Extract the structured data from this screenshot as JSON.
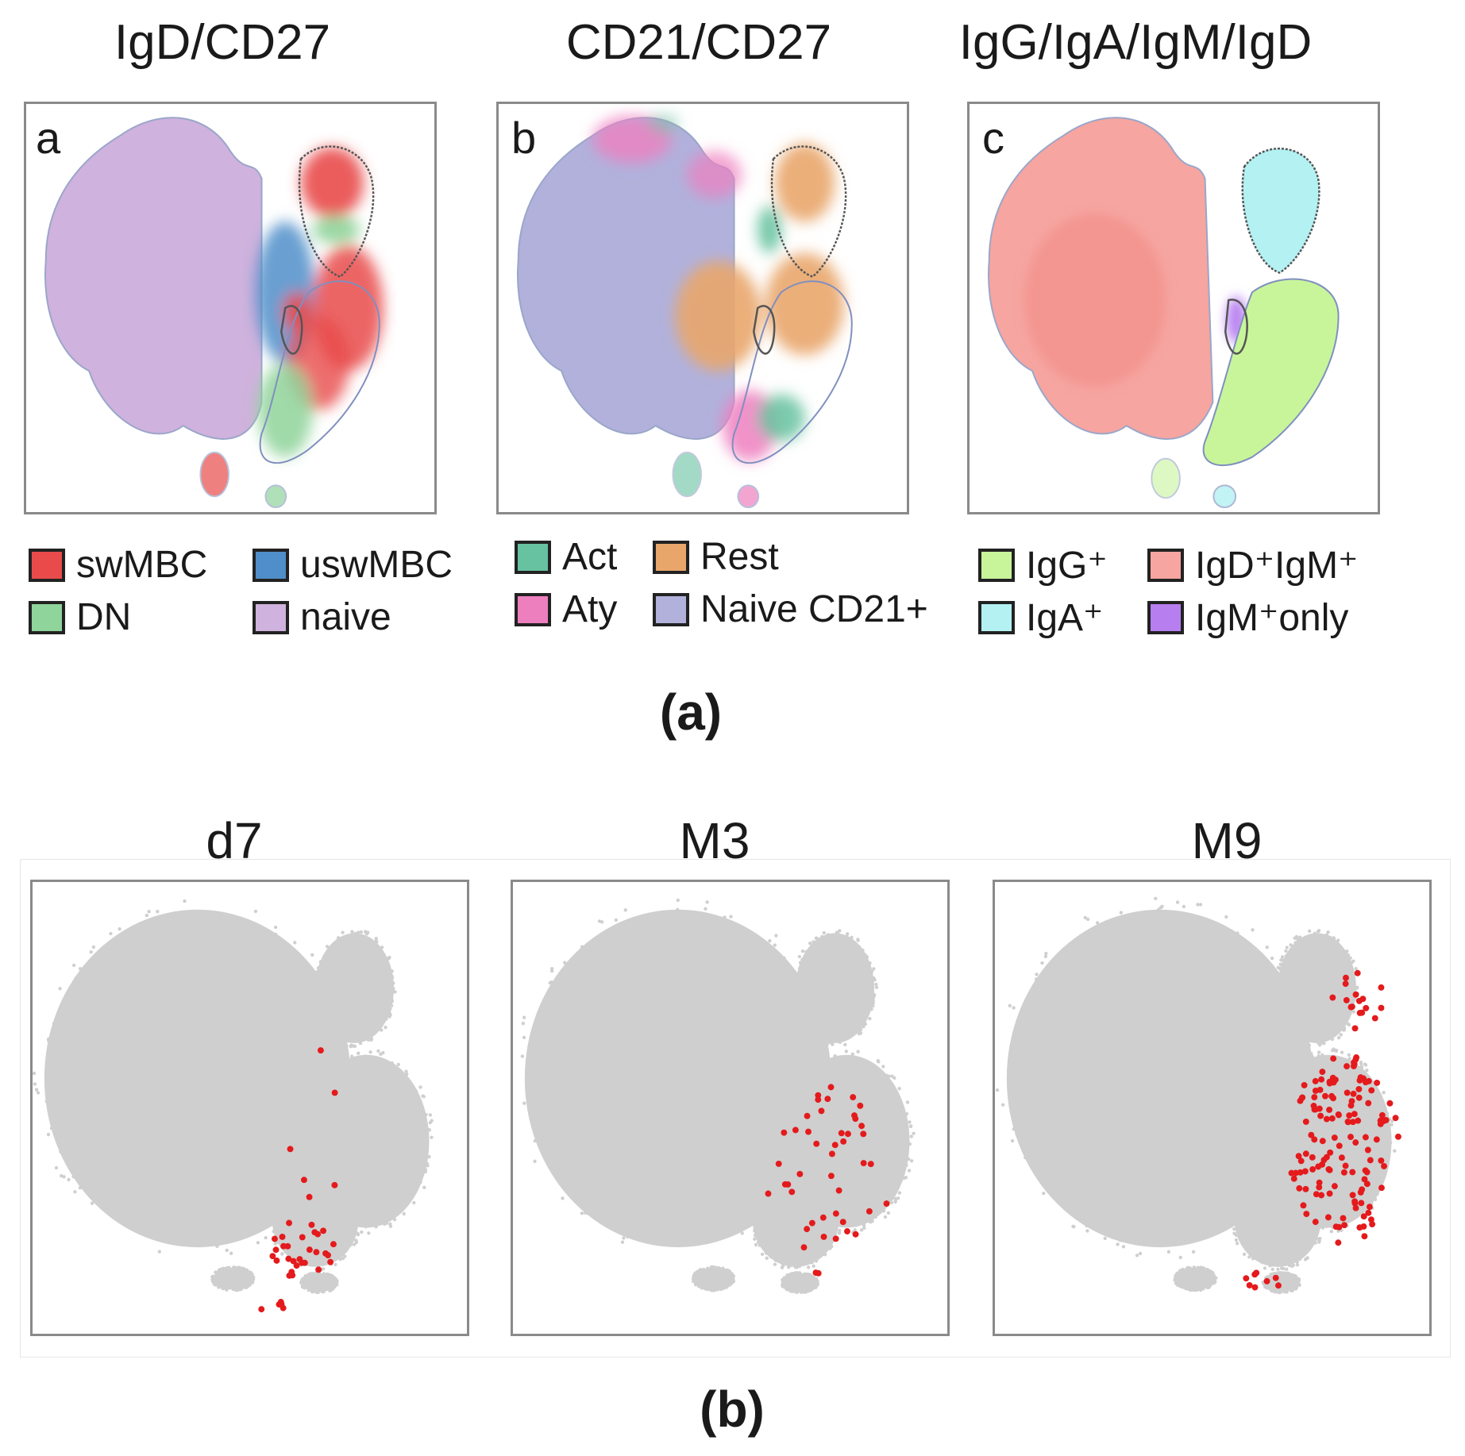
{
  "colors": {
    "swMBC": "#e94b4b",
    "uswMBC": "#4f8ec9",
    "DN": "#8fd49a",
    "naive": "#cfb2dd",
    "Act": "#66c2a0",
    "Aty": "#ee7fbf",
    "Rest": "#e9a66b",
    "NaiveCD21": "#b1b1dc",
    "IgG": "#c8f59a",
    "IgA": "#b4f1f3",
    "IgDIgM": "#f6a5a0",
    "IgMonly": "#b77ef0",
    "cells": "#cfcfcf",
    "marker": "#e41a1c"
  },
  "figure_a": {
    "caption": "(a)",
    "panels": [
      {
        "title": "IgD/CD27",
        "letter": "a",
        "legend": [
          {
            "label": "swMBC",
            "color": "#e94b4b"
          },
          {
            "label": "uswMBC",
            "color": "#4f8ec9"
          },
          {
            "label": "DN",
            "color": "#8fd49a"
          },
          {
            "label": "naive",
            "color": "#cfb2dd"
          }
        ]
      },
      {
        "title": "CD21/CD27",
        "letter": "b",
        "legend": [
          {
            "label": "Act",
            "color": "#66c2a0"
          },
          {
            "label": "Rest",
            "color": "#e9a66b"
          },
          {
            "label": "Aty",
            "color": "#ee7fbf"
          },
          {
            "label": "Naive CD21+",
            "color": "#b1b1dc"
          }
        ]
      },
      {
        "title": "IgG/IgA/IgM/IgD",
        "letter": "c",
        "legend": [
          {
            "label": "IgG⁺",
            "color": "#c8f59a"
          },
          {
            "label": "IgD⁺IgM⁺",
            "color": "#f6a5a0"
          },
          {
            "label": "IgA⁺",
            "color": "#b4f1f3"
          },
          {
            "label": "IgM⁺only",
            "color": "#b77ef0"
          }
        ]
      }
    ]
  },
  "figure_b": {
    "caption": "(b)",
    "panels": [
      {
        "title": "d7"
      },
      {
        "title": "M3"
      },
      {
        "title": "M9"
      }
    ]
  },
  "chart_data": [
    {
      "type": "scatter",
      "title": "IgD/CD27",
      "panel_letter": "a",
      "series": [
        {
          "name": "swMBC"
        },
        {
          "name": "uswMBC"
        },
        {
          "name": "DN"
        },
        {
          "name": "naive"
        }
      ]
    },
    {
      "type": "scatter",
      "title": "CD21/CD27",
      "panel_letter": "b",
      "series": [
        {
          "name": "Act"
        },
        {
          "name": "Rest"
        },
        {
          "name": "Aty"
        },
        {
          "name": "Naive CD21+"
        }
      ]
    },
    {
      "type": "scatter",
      "title": "IgG/IgA/IgM/IgD",
      "panel_letter": "c",
      "series": [
        {
          "name": "IgG⁺"
        },
        {
          "name": "IgD⁺IgM⁺"
        },
        {
          "name": "IgA⁺"
        },
        {
          "name": "IgM⁺only"
        }
      ]
    },
    {
      "type": "scatter",
      "title": "d7",
      "highlighted_cells": 40
    },
    {
      "type": "scatter",
      "title": "M3",
      "highlighted_cells": 45
    },
    {
      "type": "scatter",
      "title": "M9",
      "highlighted_cells": 160
    }
  ]
}
